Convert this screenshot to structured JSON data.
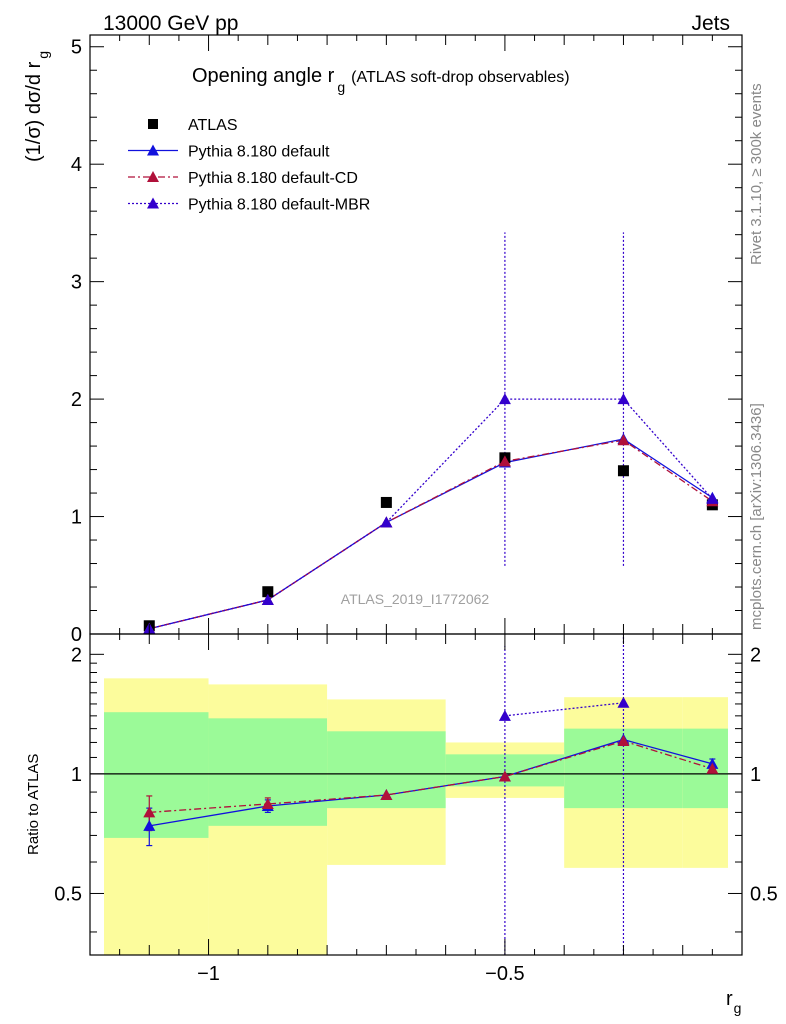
{
  "header": {
    "energy_label": "13000 GeV pp",
    "category_label": "Jets"
  },
  "side_labels": {
    "rivet": "Rivet 3.1.10, ≥ 300k events",
    "source": "mcplots.cern.ch [arXiv:1306.3436]"
  },
  "chart_data": [
    {
      "type": "scatter",
      "title": "Opening angle r",
      "title_subscript": "g",
      "title_suffix": "(ATLAS soft-drop observables)",
      "watermark": "ATLAS_2019_I1772062",
      "ylabel": "(1/σ) dσ/d r",
      "ylabel_subscript": "g",
      "xlim": [
        -1.2,
        -0.1
      ],
      "ylim": [
        0,
        5.1
      ],
      "y_ticks": [
        0,
        1,
        2,
        3,
        4,
        5
      ],
      "y_tick_labels": [
        "0",
        "1",
        "2",
        "3",
        "4",
        "5"
      ],
      "legend_position": "top-left",
      "x": [
        -1.1,
        -0.9,
        -0.7,
        -0.5,
        -0.3,
        -0.15
      ],
      "series": [
        {
          "name": "ATLAS",
          "marker": "square",
          "color": "#000000",
          "values": [
            0.07,
            0.36,
            1.12,
            1.5,
            1.39,
            1.1
          ]
        },
        {
          "name": "Pythia 8.180 default",
          "marker": "triangle",
          "line": "solid",
          "color": "#1111dd",
          "values": [
            0.045,
            0.29,
            0.95,
            1.46,
            1.66,
            1.16
          ]
        },
        {
          "name": "Pythia 8.180 default-CD",
          "marker": "triangle",
          "line": "dash-dot",
          "color": "#b0103a",
          "values": [
            0.045,
            0.29,
            0.95,
            1.47,
            1.65,
            1.13
          ]
        },
        {
          "name": "Pythia 8.180 default-MBR",
          "marker": "triangle",
          "line": "dotted",
          "color": "#3300cc",
          "values": [
            0.045,
            0.29,
            0.95,
            2.0,
            2.0,
            1.15
          ],
          "error_low": [
            null,
            null,
            null,
            0.58,
            0.58,
            null
          ],
          "error_high": [
            null,
            null,
            null,
            3.42,
            3.42,
            null
          ]
        }
      ]
    },
    {
      "type": "scatter",
      "ylabel": "Ratio to ATLAS",
      "xlabel": "r",
      "xlabel_subscript": "g",
      "xlim": [
        -1.2,
        -0.1
      ],
      "ylim": [
        0.35,
        2.25
      ],
      "y_ticks": [
        0.5,
        1,
        2
      ],
      "y_tick_labels": [
        "0.5",
        "1",
        "2"
      ],
      "x_ticks": [
        -1,
        -0.5
      ],
      "x_tick_labels": [
        "−1",
        "−0.5"
      ],
      "reference_line": 1,
      "bands": {
        "bin_edges": [
          -1.2,
          -1.0,
          -0.8,
          -0.6,
          -0.4,
          -0.2,
          -0.1
        ],
        "inner_low": [
          0.69,
          0.74,
          0.82,
          0.93,
          0.82,
          0.82
        ],
        "inner_high": [
          1.43,
          1.38,
          1.28,
          1.12,
          1.3,
          1.3
        ],
        "outer_low": [
          0.35,
          0.35,
          0.59,
          0.87,
          0.58,
          0.58
        ],
        "outer_high": [
          1.74,
          1.68,
          1.54,
          1.2,
          1.56,
          1.56
        ],
        "inner_color": "#9bfa98",
        "outer_color": "#fcfc9c"
      },
      "x": [
        -1.1,
        -0.9,
        -0.7,
        -0.5,
        -0.3,
        -0.15
      ],
      "series": [
        {
          "name": "Pythia 8.180 default",
          "marker": "triangle",
          "line": "solid",
          "color": "#1111dd",
          "values": [
            0.74,
            0.83,
            0.885,
            0.985,
            1.22,
            1.06
          ],
          "error_low": [
            0.66,
            0.8,
            null,
            null,
            null,
            1.03
          ],
          "error_high": [
            0.82,
            0.86,
            null,
            null,
            null,
            1.09
          ]
        },
        {
          "name": "Pythia 8.180 default-CD",
          "marker": "triangle",
          "line": "dash-dot",
          "color": "#b0103a",
          "values": [
            0.8,
            0.84,
            0.885,
            0.985,
            1.21,
            1.03
          ],
          "error_low": [
            0.72,
            0.81,
            null,
            null,
            null,
            null
          ],
          "error_high": [
            0.88,
            0.87,
            null,
            null,
            null,
            null
          ]
        },
        {
          "name": "Pythia 8.180 default-MBR",
          "marker": "triangle",
          "line": "dotted",
          "color": "#3300cc",
          "values": [
            null,
            null,
            null,
            1.4,
            1.51,
            null
          ],
          "error_low": [
            null,
            null,
            null,
            0.35,
            0.35,
            null
          ],
          "error_high": [
            null,
            null,
            null,
            2.1,
            2.25,
            null
          ]
        }
      ]
    }
  ]
}
